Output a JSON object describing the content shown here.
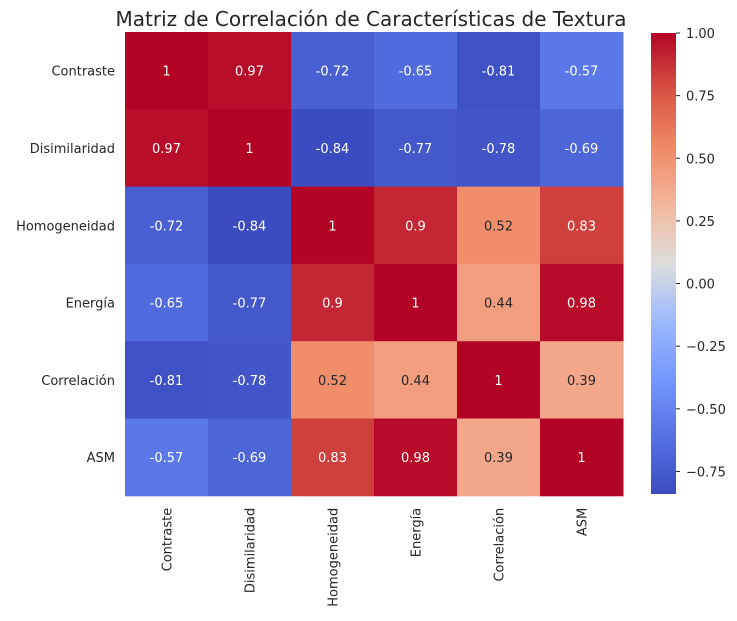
{
  "chart_data": {
    "type": "heatmap",
    "title": "Matriz de Correlación de Características de Textura",
    "xlabel": "",
    "ylabel": "",
    "x_categories": [
      "Contraste",
      "Disimilaridad",
      "Homogeneidad",
      "Energía",
      "Correlación",
      "ASM"
    ],
    "y_categories": [
      "Contraste",
      "Disimilaridad",
      "Homogeneidad",
      "Energía",
      "Correlación",
      "ASM"
    ],
    "values": [
      [
        1,
        0.97,
        -0.72,
        -0.65,
        -0.81,
        -0.57
      ],
      [
        0.97,
        1,
        -0.84,
        -0.77,
        -0.78,
        -0.69
      ],
      [
        -0.72,
        -0.84,
        1,
        0.9,
        0.52,
        0.83
      ],
      [
        -0.65,
        -0.77,
        0.9,
        1,
        0.44,
        0.98
      ],
      [
        -0.81,
        -0.78,
        0.52,
        0.44,
        1,
        0.39
      ],
      [
        -0.57,
        -0.69,
        0.83,
        0.98,
        0.39,
        1
      ]
    ],
    "annotations": [
      [
        "1",
        "0.97",
        "-0.72",
        "-0.65",
        "-0.81",
        "-0.57"
      ],
      [
        "0.97",
        "1",
        "-0.84",
        "-0.77",
        "-0.78",
        "-0.69"
      ],
      [
        "-0.72",
        "-0.84",
        "1",
        "0.9",
        "0.52",
        "0.83"
      ],
      [
        "-0.65",
        "-0.77",
        "0.9",
        "1",
        "0.44",
        "0.98"
      ],
      [
        "-0.81",
        "-0.78",
        "0.52",
        "0.44",
        "1",
        "0.39"
      ],
      [
        "-0.57",
        "-0.69",
        "0.83",
        "0.98",
        "0.39",
        "1"
      ]
    ],
    "colormap": "coolwarm",
    "colorbar": {
      "vmin": -0.84,
      "vmax": 1.0,
      "ticks": [
        1.0,
        0.75,
        0.5,
        0.25,
        0.0,
        -0.25,
        -0.5,
        -0.75
      ],
      "tick_labels": [
        "1.00",
        "0.75",
        "0.50",
        "0.25",
        "0.00",
        "−0.25",
        "−0.50",
        "−0.75"
      ],
      "placement": "right"
    },
    "grid": false
  }
}
